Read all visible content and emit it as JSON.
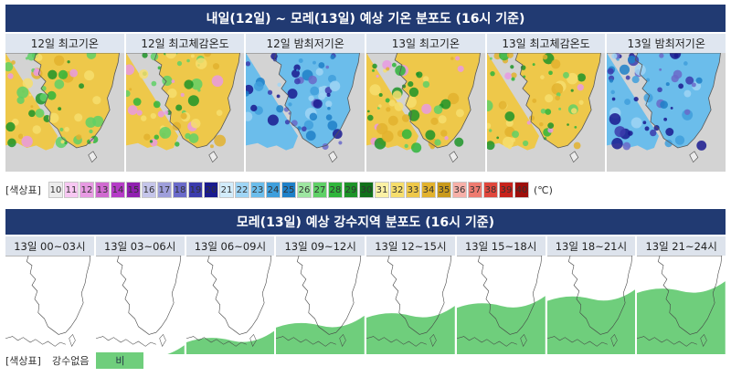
{
  "top_section": {
    "title": "내일(12일) ~ 모레(13일) 예상 기온 분포도 (16시 기준)",
    "panels": [
      {
        "label": "12일 최고기온",
        "palette": "max"
      },
      {
        "label": "12일 최고체감온도",
        "palette": "max"
      },
      {
        "label": "12일 밤최저기온",
        "palette": "min"
      },
      {
        "label": "13일 최고기온",
        "palette": "max"
      },
      {
        "label": "13일 최고체감온도",
        "palette": "max"
      },
      {
        "label": "13일 밤최저기온",
        "palette": "min"
      }
    ]
  },
  "temp_legend": {
    "title": "[색상표]",
    "unit": "(℃)",
    "entries": [
      {
        "value": "10",
        "color": "#ececec",
        "text": "#333333"
      },
      {
        "value": "11",
        "color": "#f7c7f2",
        "text": "#333333"
      },
      {
        "value": "12",
        "color": "#e79ae2",
        "text": "#333333"
      },
      {
        "value": "13",
        "color": "#d06ad0",
        "text": "#333333"
      },
      {
        "value": "14",
        "color": "#b53cc7",
        "text": "#333333"
      },
      {
        "value": "15",
        "color": "#9020b0",
        "text": "#333333"
      },
      {
        "value": "16",
        "color": "#c5c5ea",
        "text": "#333333"
      },
      {
        "value": "17",
        "color": "#9f9fdb",
        "text": "#333333"
      },
      {
        "value": "18",
        "color": "#6a6ac9",
        "text": "#333333"
      },
      {
        "value": "19",
        "color": "#3c3cad",
        "text": "#333333"
      },
      {
        "value": "20",
        "color": "#1a1a8f",
        "text": "#333333"
      },
      {
        "value": "21",
        "color": "#d2ecfb",
        "text": "#333333"
      },
      {
        "value": "22",
        "color": "#9fd5f5",
        "text": "#333333"
      },
      {
        "value": "23",
        "color": "#6bbdeb",
        "text": "#333333"
      },
      {
        "value": "24",
        "color": "#3f9fdc",
        "text": "#333333"
      },
      {
        "value": "25",
        "color": "#1e80c8",
        "text": "#333333"
      },
      {
        "value": "26",
        "color": "#9ee6a1",
        "text": "#333333"
      },
      {
        "value": "27",
        "color": "#5fd066",
        "text": "#333333"
      },
      {
        "value": "28",
        "color": "#2fb53b",
        "text": "#333333"
      },
      {
        "value": "29",
        "color": "#1d9428",
        "text": "#333333"
      },
      {
        "value": "30",
        "color": "#11711a",
        "text": "#333333"
      },
      {
        "value": "31",
        "color": "#fbf1a5",
        "text": "#333333"
      },
      {
        "value": "32",
        "color": "#f6de6d",
        "text": "#333333"
      },
      {
        "value": "33",
        "color": "#eec84a",
        "text": "#333333"
      },
      {
        "value": "34",
        "color": "#e2b22e",
        "text": "#333333"
      },
      {
        "value": "35",
        "color": "#c99a1c",
        "text": "#333333"
      },
      {
        "value": "36",
        "color": "#f7b0a8",
        "text": "#333333"
      },
      {
        "value": "37",
        "color": "#ee7b70",
        "text": "#333333"
      },
      {
        "value": "38",
        "color": "#e0473c",
        "text": "#333333"
      },
      {
        "value": "39",
        "color": "#c8221b",
        "text": "#333333"
      },
      {
        "value": "40",
        "color": "#9e0e0a",
        "text": "#333333"
      }
    ]
  },
  "bottom_section": {
    "title": "모레(13일) 예상 강수지역 분포도 (16시 기준)",
    "panels": [
      {
        "label": "13일 00~03시",
        "rain": 0.0
      },
      {
        "label": "13일 03~06시",
        "rain": 0.05
      },
      {
        "label": "13일 06~09시",
        "rain": 0.2
      },
      {
        "label": "13일 09~12시",
        "rain": 0.35
      },
      {
        "label": "13일 12~15시",
        "rain": 0.45
      },
      {
        "label": "13일 15~18시",
        "rain": 0.55
      },
      {
        "label": "13일 18~21시",
        "rain": 0.62
      },
      {
        "label": "13일 21~24시",
        "rain": 0.7
      }
    ]
  },
  "rain_legend": {
    "title": "[색상표]",
    "none_label": "강수없음",
    "rain_label": "비",
    "rain_color": "#6fce7c"
  }
}
